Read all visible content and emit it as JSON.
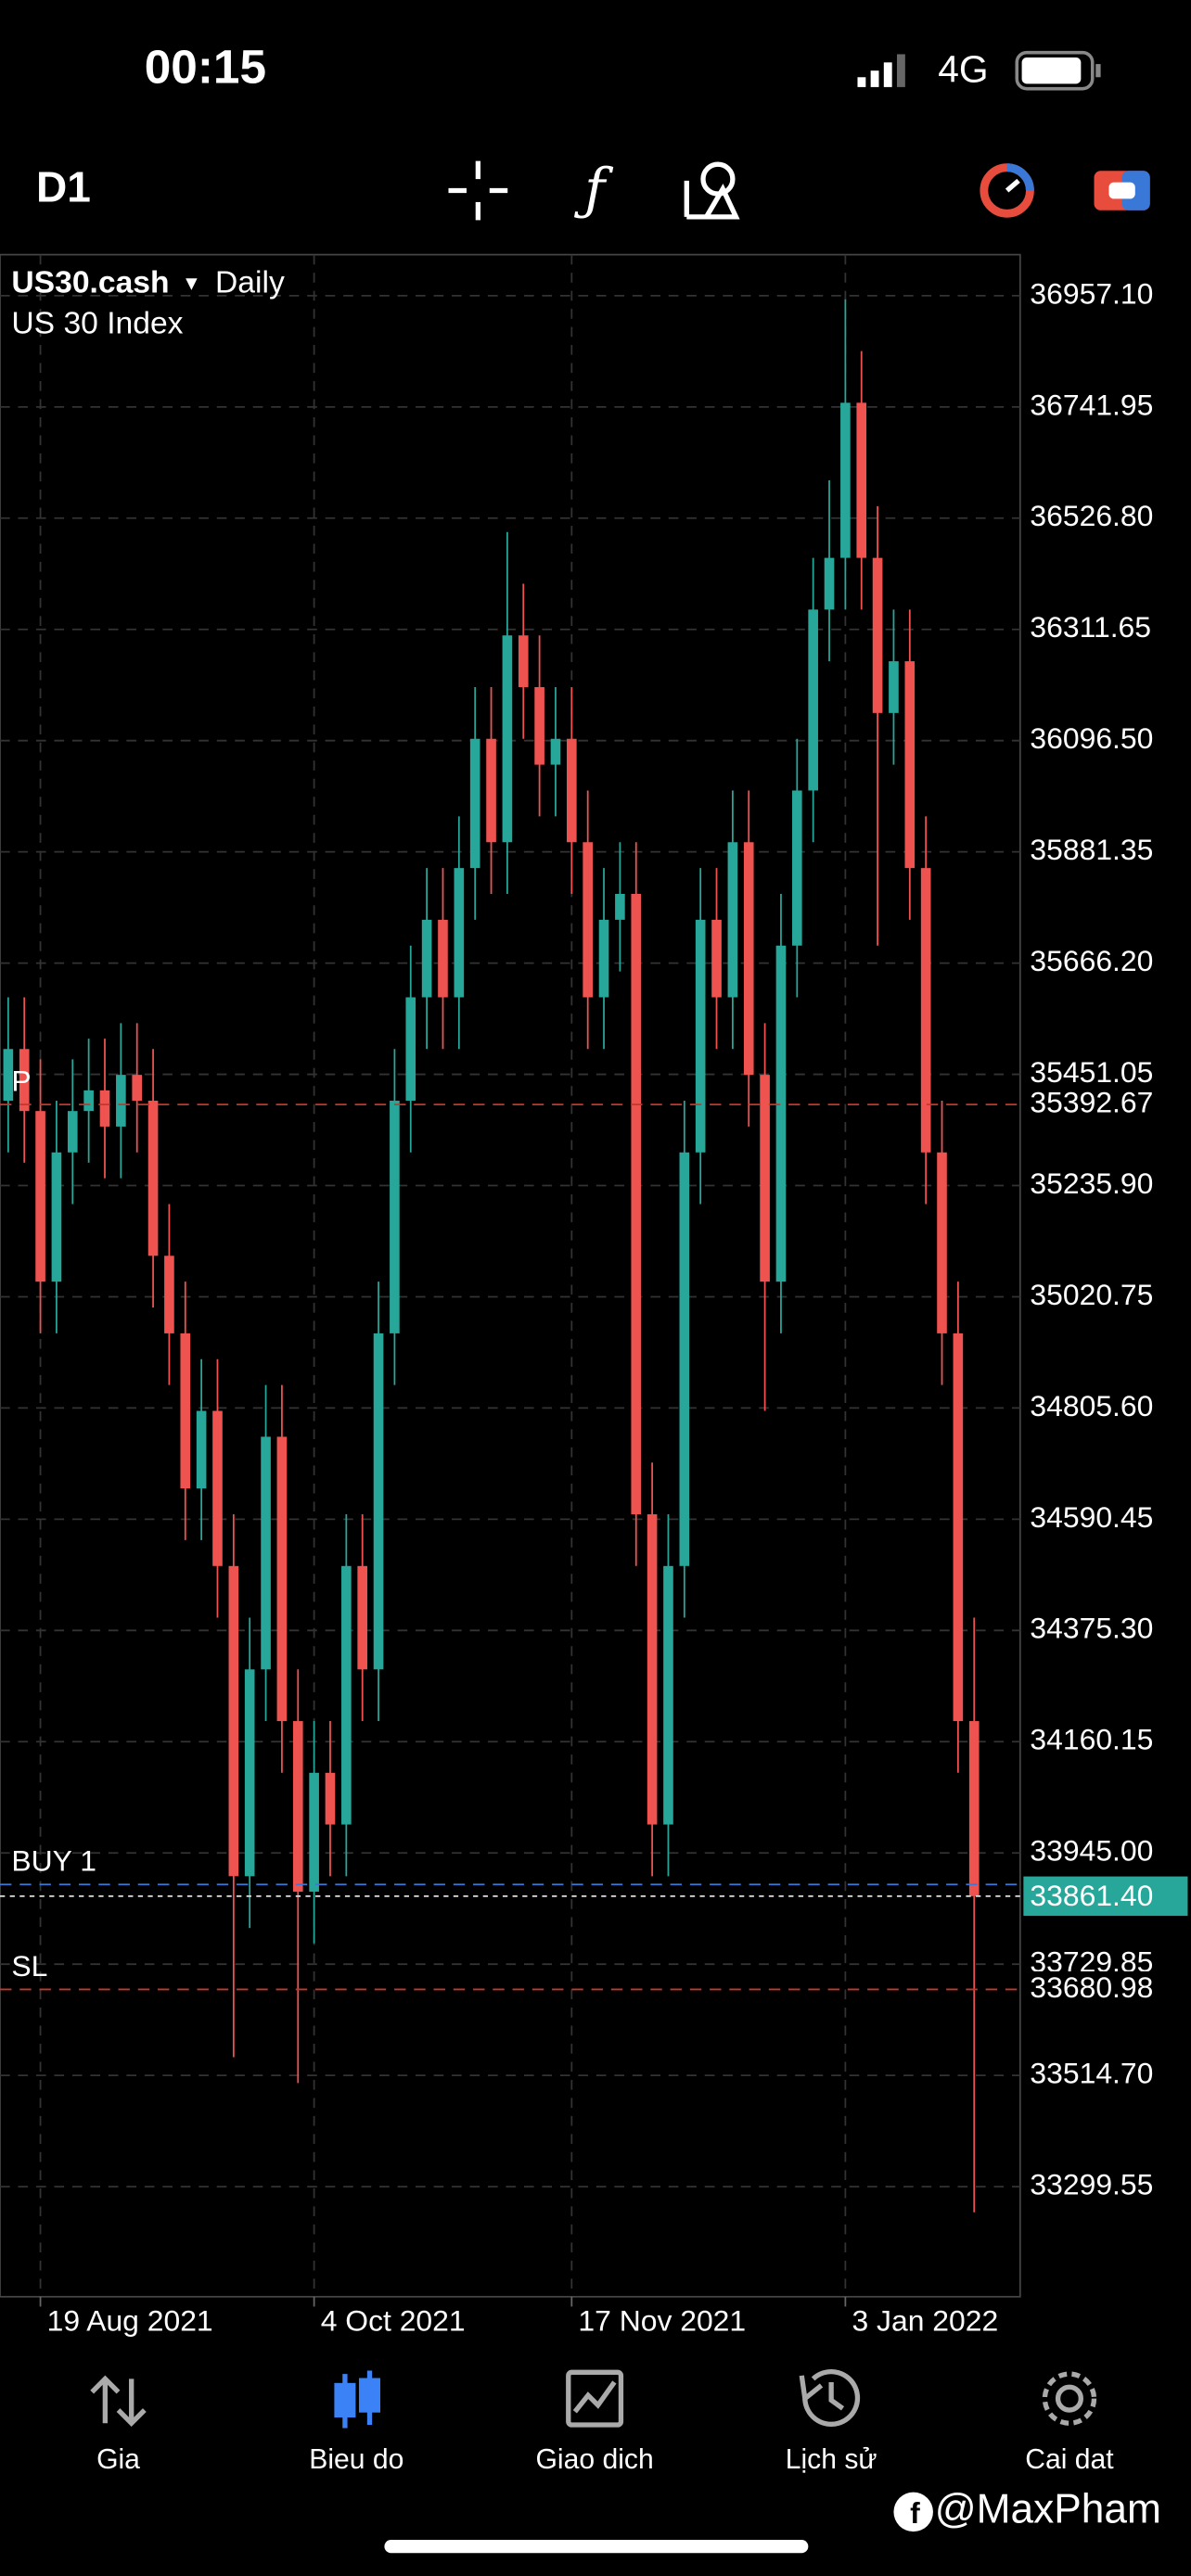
{
  "status_bar": {
    "time": "00:15",
    "network": "4G"
  },
  "toolbar": {
    "timeframe": "D1"
  },
  "chart_data": {
    "type": "candlestick",
    "symbol": "US30.cash",
    "period": "Daily",
    "description": "US 30 Index",
    "categories": [
      null,
      null,
      "19 Aug 2021",
      null,
      null,
      null,
      null,
      null,
      null,
      null,
      null,
      null,
      null,
      null,
      null,
      null,
      null,
      null,
      null,
      "4 Oct 2021",
      null,
      null,
      null,
      null,
      null,
      null,
      null,
      null,
      null,
      null,
      null,
      null,
      null,
      null,
      null,
      "17 Nov 2021",
      null,
      null,
      null,
      null,
      null,
      null,
      null,
      null,
      null,
      null,
      null,
      null,
      null,
      null,
      null,
      null,
      "3 Jan 2022",
      null,
      null,
      null,
      null,
      null,
      null,
      null,
      null
    ],
    "open": [
      35400,
      35500,
      35380,
      35050,
      35300,
      35380,
      35420,
      35350,
      35450,
      35400,
      35100,
      34950,
      34650,
      34800,
      34500,
      33900,
      34300,
      34750,
      34200,
      33870,
      34100,
      34000,
      34500,
      34300,
      34950,
      35400,
      35600,
      35750,
      35600,
      35850,
      36100,
      35900,
      36300,
      36200,
      36050,
      36100,
      35900,
      35600,
      35750,
      35800,
      34600,
      34000,
      34500,
      35300,
      35750,
      35600,
      35900,
      35450,
      35050,
      35700,
      36000,
      36350,
      36450,
      36750,
      36450,
      36150,
      36250,
      35850,
      35300,
      34950,
      34200
    ],
    "high": [
      35600,
      35600,
      35480,
      35400,
      35480,
      35520,
      35520,
      35550,
      35550,
      35500,
      35200,
      35050,
      34900,
      34900,
      34600,
      34400,
      34850,
      34850,
      34300,
      34200,
      34200,
      34600,
      34600,
      35050,
      35500,
      35700,
      35850,
      35850,
      35950,
      36200,
      36200,
      36500,
      36400,
      36300,
      36200,
      36200,
      36000,
      35850,
      35900,
      35900,
      34700,
      34600,
      35400,
      35850,
      35850,
      36000,
      36000,
      35550,
      35800,
      36100,
      36450,
      36600,
      36950,
      36850,
      36550,
      36350,
      36350,
      35950,
      35400,
      35050,
      34400
    ],
    "low": [
      35300,
      35280,
      34950,
      34950,
      35200,
      35280,
      35250,
      35250,
      35300,
      35000,
      34850,
      34550,
      34550,
      34400,
      33550,
      33800,
      34200,
      34100,
      33500,
      33770,
      33900,
      33900,
      34200,
      34200,
      34850,
      35300,
      35500,
      35500,
      35500,
      35750,
      35800,
      35800,
      36100,
      35950,
      35950,
      35800,
      35500,
      35500,
      35650,
      34500,
      33900,
      33900,
      34400,
      35200,
      35500,
      35500,
      35350,
      34800,
      34950,
      35600,
      35900,
      36250,
      36350,
      36350,
      35700,
      36050,
      35750,
      35200,
      34850,
      34100,
      33250
    ],
    "close": [
      35500,
      35380,
      35050,
      35300,
      35380,
      35420,
      35350,
      35450,
      35400,
      35100,
      34950,
      34650,
      34800,
      34500,
      33900,
      34300,
      34750,
      34200,
      33870,
      34100,
      34000,
      34500,
      34300,
      34950,
      35400,
      35600,
      35750,
      35600,
      35850,
      36100,
      35900,
      36300,
      36200,
      36050,
      36100,
      35900,
      35600,
      35750,
      35800,
      34600,
      34000,
      34500,
      35300,
      35750,
      35600,
      35900,
      35450,
      35050,
      35700,
      36000,
      36350,
      36450,
      36750,
      36450,
      36150,
      36250,
      35850,
      35300,
      34950,
      34200,
      33861.4
    ],
    "up_color": "#27a69a",
    "down_color": "#ef5350",
    "grid": true,
    "ylim": [
      33086.6,
      37036.5
    ],
    "yticks": [
      {
        "value": 36957.1,
        "label": "36957.10"
      },
      {
        "value": 36741.95,
        "label": "36741.95"
      },
      {
        "value": 36526.8,
        "label": "36526.80"
      },
      {
        "value": 36311.65,
        "label": "36311.65"
      },
      {
        "value": 36096.5,
        "label": "36096.50"
      },
      {
        "value": 35881.35,
        "label": "35881.35"
      },
      {
        "value": 35666.2,
        "label": "35666.20"
      },
      {
        "value": 35451.05,
        "label": "35451.05"
      },
      {
        "value": 35235.9,
        "label": "35235.90"
      },
      {
        "value": 35020.75,
        "label": "35020.75"
      },
      {
        "value": 34805.6,
        "label": "34805.60"
      },
      {
        "value": 34590.45,
        "label": "34590.45"
      },
      {
        "value": 34375.3,
        "label": "34375.30"
      },
      {
        "value": 34160.15,
        "label": "34160.15"
      },
      {
        "value": 33945,
        "label": "33945.00"
      },
      {
        "value": 33729.85,
        "label": "33729.85"
      },
      {
        "value": 33514.7,
        "label": "33514.70"
      },
      {
        "value": 33299.55,
        "label": "33299.55"
      }
    ],
    "levels": [
      {
        "name": "P",
        "value": 35392.67,
        "color": "#c0392b",
        "show_price": true
      },
      {
        "name": "BUY 1",
        "value": 33884,
        "color": "#3a78d8",
        "show_price": false
      },
      {
        "name": "SL",
        "value": 33680.98,
        "color": "#c0392b",
        "show_price": true
      }
    ],
    "last_price": {
      "value": 33861.4,
      "label": "33861.40",
      "color": "#27a69a"
    }
  },
  "nav": {
    "items": [
      "Gia",
      "Bieu do",
      "Giao dich",
      "Lịch sử",
      "Cai dat"
    ],
    "active": 1
  },
  "watermark": "@MaxPham"
}
